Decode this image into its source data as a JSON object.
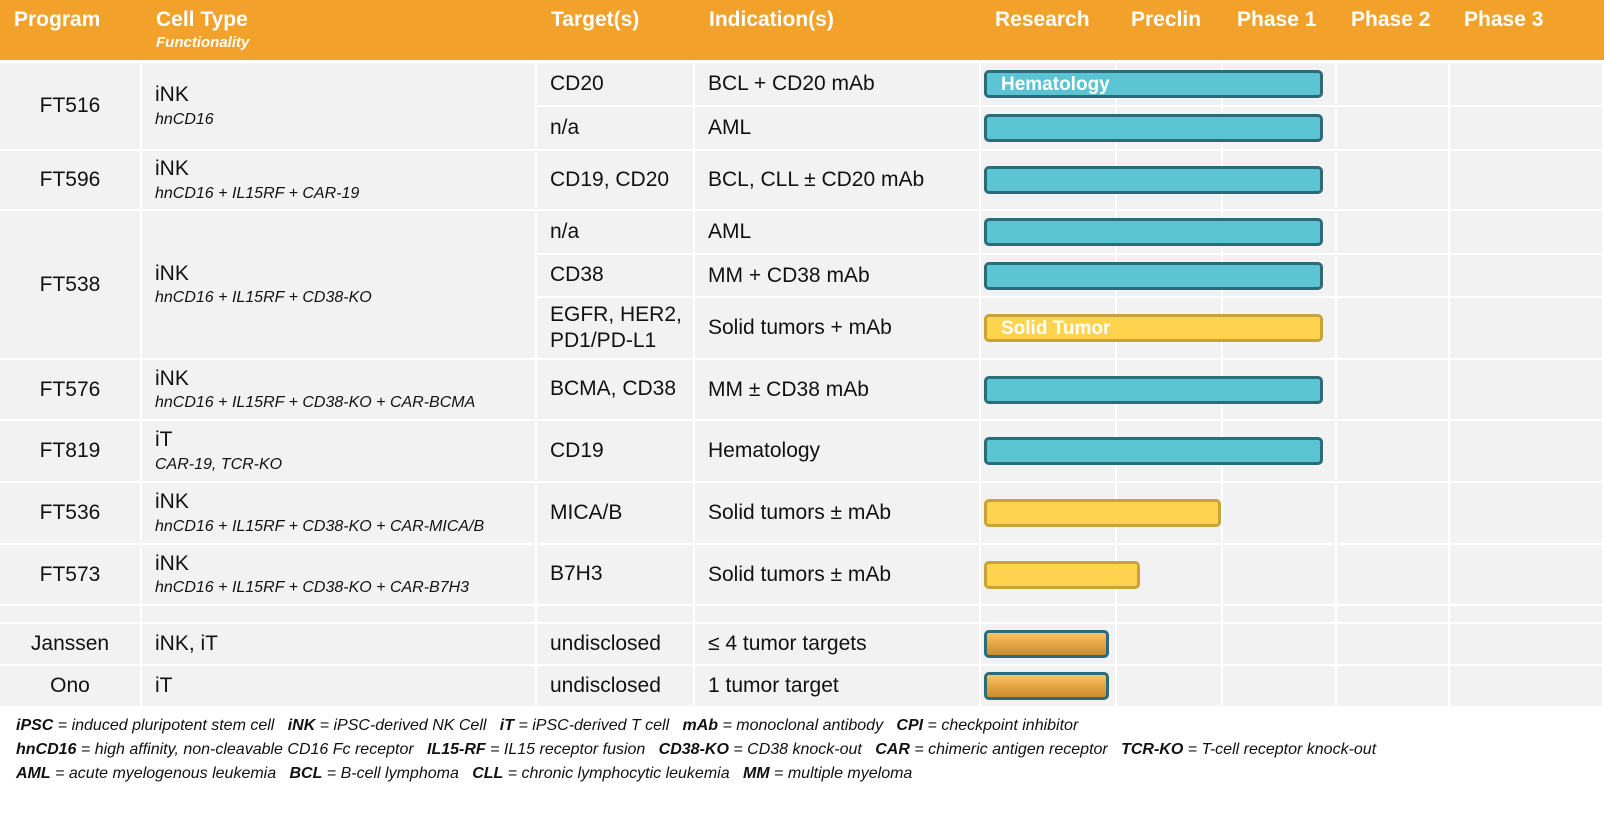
{
  "header": {
    "program": "Program",
    "cell_type": "Cell Type",
    "functionality": "Functionality",
    "targets": "Target(s)",
    "indications": "Indication(s)",
    "phases": [
      "Research",
      "Preclin",
      "Phase 1",
      "Phase 2",
      "Phase 3"
    ]
  },
  "colors": {
    "header": "#F2A12B",
    "hematology_bar": "#5BC4D3",
    "solid_tumor_bar": "#FFD34E",
    "row_bg": "#F2F2F2"
  },
  "programs": [
    {
      "name": "FT516",
      "cell": "iNK",
      "func": "hnCD16",
      "rows": [
        {
          "target": "CD20",
          "indication": "BCL + CD20 mAb",
          "bar_type": "heme",
          "stage_fraction": 1.0,
          "bar_label": "Hematology"
        },
        {
          "target": "n/a",
          "indication": "AML",
          "bar_type": "heme",
          "stage_fraction": 1.0
        }
      ]
    },
    {
      "name": "FT596",
      "cell": "iNK",
      "func": "hnCD16 + IL15RF + CAR-19",
      "rows": [
        {
          "target": "CD19, CD20",
          "indication": "BCL, CLL ± CD20 mAb",
          "bar_type": "heme",
          "stage_fraction": 1.0
        }
      ]
    },
    {
      "name": "FT538",
      "cell": "iNK",
      "func": "hnCD16 + IL15RF + CD38-KO",
      "rows": [
        {
          "target": "n/a",
          "indication": "AML",
          "bar_type": "heme",
          "stage_fraction": 1.0
        },
        {
          "target": "CD38",
          "indication": "MM + CD38 mAb",
          "bar_type": "heme",
          "stage_fraction": 1.0
        },
        {
          "target": "EGFR, HER2,",
          "target2": "PD1/PD-L1",
          "indication": "Solid tumors + mAb",
          "bar_type": "solid",
          "stage_fraction": 1.0,
          "bar_label": "Solid Tumor"
        }
      ]
    },
    {
      "name": "FT576",
      "cell": "iNK",
      "func": "hnCD16 + IL15RF + CD38-KO + CAR-BCMA",
      "rows": [
        {
          "target": "BCMA, CD38",
          "indication": "MM ± CD38 mAb",
          "bar_type": "heme",
          "stage_fraction": 1.0
        }
      ]
    },
    {
      "name": "FT819",
      "cell": "iT",
      "func": "CAR-19, TCR-KO",
      "rows": [
        {
          "target": "CD19",
          "indication": "Hematology",
          "bar_type": "heme",
          "stage_fraction": 1.0
        }
      ]
    },
    {
      "name": "FT536",
      "cell": "iNK",
      "func": "hnCD16 + IL15RF + CD38-KO + CAR-MICA/B",
      "rows": [
        {
          "target": "MICA/B",
          "indication": "Solid tumors ± mAb",
          "bar_type": "solid",
          "stage_fraction": 0.7
        }
      ]
    },
    {
      "name": "FT573",
      "cell": "iNK",
      "func": "hnCD16 + IL15RF + CD38-KO + CAR-B7H3",
      "rows": [
        {
          "target": "B7H3",
          "indication": "Solid tumors ± mAb",
          "bar_type": "solid",
          "stage_fraction": 0.46
        }
      ]
    },
    {
      "name": "Janssen",
      "cell": "iNK, iT",
      "func": "",
      "rows": [
        {
          "target": "undisclosed",
          "indication": "≤ 4 tumor targets",
          "bar_type": "gradient",
          "stage_fraction": 0.37
        }
      ]
    },
    {
      "name": "Ono",
      "cell": "iT",
      "func": "",
      "rows": [
        {
          "target": "undisclosed",
          "indication": "1 tumor target",
          "bar_type": "gradient",
          "stage_fraction": 0.37
        }
      ]
    }
  ],
  "footnotes": [
    [
      [
        "iPSC",
        " = induced pluripotent stem cell   "
      ],
      [
        "iNK",
        " = iPSC-derived NK Cell   "
      ],
      [
        "iT",
        " = iPSC-derived T cell   "
      ],
      [
        "mAb",
        " = monoclonal antibody   "
      ],
      [
        "CPI",
        " = checkpoint inhibitor"
      ]
    ],
    [
      [
        "hnCD16",
        " = high affinity, non-cleavable CD16 Fc receptor   "
      ],
      [
        "IL15-RF",
        " = IL15 receptor fusion   "
      ],
      [
        "CD38-KO",
        " = CD38 knock-out   "
      ],
      [
        "CAR",
        " = chimeric antigen receptor   "
      ],
      [
        "TCR-KO",
        " = T-cell receptor knock-out"
      ]
    ],
    [
      [
        "AML",
        " = acute myelogenous leukemia   "
      ],
      [
        "BCL",
        " = B-cell lymphoma   "
      ],
      [
        "CLL",
        " = chronic lymphocytic leukemia   "
      ],
      [
        "MM",
        " = multiple myeloma"
      ]
    ]
  ]
}
